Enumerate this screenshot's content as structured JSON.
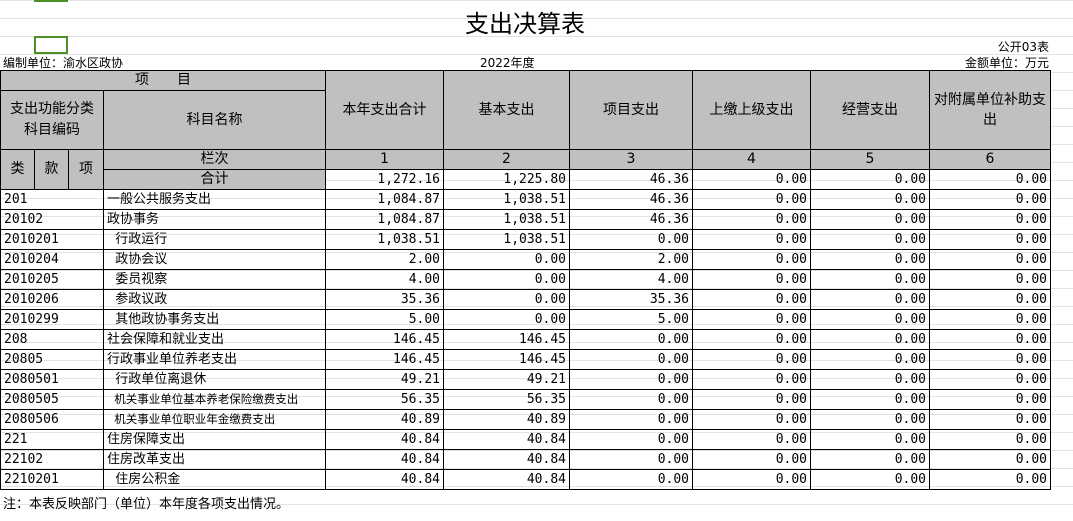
{
  "title": "支出决算表",
  "form_no": "公开03表",
  "unit_label": "编制单位：渝水区政协",
  "year": "2022年度",
  "currency": "金额单位：万元",
  "header": {
    "project": "项　　目",
    "code": "支出功能分类科目编码",
    "name": "科目名称",
    "lei": "类",
    "kuan": "款",
    "xiang": "项",
    "lanci": "栏次",
    "total_label": "合计",
    "cols": [
      "本年支出合计",
      "基本支出",
      "项目支出",
      "上缴上级支出",
      "经营支出",
      "对附属单位补助支出"
    ],
    "col_nums": [
      "1",
      "2",
      "3",
      "4",
      "5",
      "6"
    ]
  },
  "totals": [
    "1,272.16",
    "1,225.80",
    "46.36",
    "0.00",
    "0.00",
    "0.00"
  ],
  "rows": [
    {
      "code": "201",
      "name": "一般公共服务支出",
      "v": [
        "1,084.87",
        "1,038.51",
        "46.36",
        "0.00",
        "0.00",
        "0.00"
      ]
    },
    {
      "code": "20102",
      "name": "政协事务",
      "v": [
        "1,084.87",
        "1,038.51",
        "46.36",
        "0.00",
        "0.00",
        "0.00"
      ]
    },
    {
      "code": "2010201",
      "name": "  行政运行",
      "v": [
        "1,038.51",
        "1,038.51",
        "0.00",
        "0.00",
        "0.00",
        "0.00"
      ]
    },
    {
      "code": "2010204",
      "name": "  政协会议",
      "v": [
        "2.00",
        "0.00",
        "2.00",
        "0.00",
        "0.00",
        "0.00"
      ]
    },
    {
      "code": "2010205",
      "name": "  委员视察",
      "v": [
        "4.00",
        "0.00",
        "4.00",
        "0.00",
        "0.00",
        "0.00"
      ]
    },
    {
      "code": "2010206",
      "name": "  参政议政",
      "v": [
        "35.36",
        "0.00",
        "35.36",
        "0.00",
        "0.00",
        "0.00"
      ]
    },
    {
      "code": "2010299",
      "name": "  其他政协事务支出",
      "v": [
        "5.00",
        "0.00",
        "5.00",
        "0.00",
        "0.00",
        "0.00"
      ]
    },
    {
      "code": "208",
      "name": "社会保障和就业支出",
      "v": [
        "146.45",
        "146.45",
        "0.00",
        "0.00",
        "0.00",
        "0.00"
      ]
    },
    {
      "code": "20805",
      "name": "行政事业单位养老支出",
      "v": [
        "146.45",
        "146.45",
        "0.00",
        "0.00",
        "0.00",
        "0.00"
      ]
    },
    {
      "code": "2080501",
      "name": "  行政单位离退休",
      "v": [
        "49.21",
        "49.21",
        "0.00",
        "0.00",
        "0.00",
        "0.00"
      ]
    },
    {
      "code": "2080505",
      "name": "  机关事业单位基本养老保险缴费支出",
      "v": [
        "56.35",
        "56.35",
        "0.00",
        "0.00",
        "0.00",
        "0.00"
      ]
    },
    {
      "code": "2080506",
      "name": "  机关事业单位职业年金缴费支出",
      "v": [
        "40.89",
        "40.89",
        "0.00",
        "0.00",
        "0.00",
        "0.00"
      ]
    },
    {
      "code": "221",
      "name": "住房保障支出",
      "v": [
        "40.84",
        "40.84",
        "0.00",
        "0.00",
        "0.00",
        "0.00"
      ]
    },
    {
      "code": "22102",
      "name": "住房改革支出",
      "v": [
        "40.84",
        "40.84",
        "0.00",
        "0.00",
        "0.00",
        "0.00"
      ]
    },
    {
      "code": "2210201",
      "name": "  住房公积金",
      "v": [
        "40.84",
        "40.84",
        "0.00",
        "0.00",
        "0.00",
        "0.00"
      ]
    }
  ],
  "note": "注：本表反映部门（单位）本年度各项支出情况。"
}
